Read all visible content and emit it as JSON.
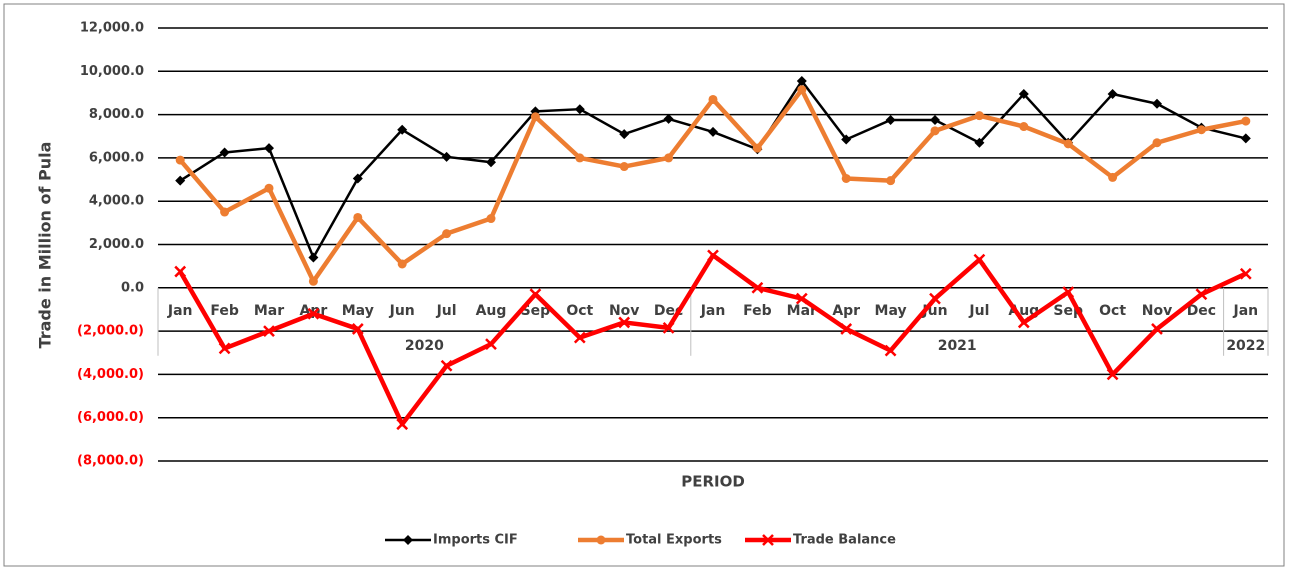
{
  "chart_data": {
    "type": "line",
    "x_title": "PERIOD",
    "y_title": "Trade in Million of  Pula",
    "categories": [
      "Jan",
      "Feb",
      "Mar",
      "Apr",
      "May",
      "Jun",
      "Jul",
      "Aug",
      "Sep",
      "Oct",
      "Nov",
      "Dec",
      "Jan",
      "Feb",
      "Mar",
      "Apr",
      "May",
      "Jun",
      "Jul",
      "Aug",
      "Sep",
      "Oct",
      "Nov",
      "Dec",
      "Jan"
    ],
    "category_years": [
      "2020",
      "2020",
      "2020",
      "2020",
      "2020",
      "2020",
      "2020",
      "2020",
      "2020",
      "2020",
      "2020",
      "2020",
      "2021",
      "2021",
      "2021",
      "2021",
      "2021",
      "2021",
      "2021",
      "2021",
      "2021",
      "2021",
      "2021",
      "2021",
      "2022"
    ],
    "series": [
      {
        "name": "Imports CIF",
        "color": "#000000",
        "marker": "diamond",
        "values": [
          4950,
          6250,
          6450,
          1400,
          5050,
          7300,
          6050,
          5800,
          8150,
          8250,
          7100,
          7800,
          7200,
          6400,
          9550,
          6850,
          7750,
          7750,
          6700,
          8950,
          6700,
          8950,
          8500,
          7400,
          6900
        ]
      },
      {
        "name": "Total Exports",
        "color": "#ed7d31",
        "marker": "circle",
        "values": [
          5900,
          3500,
          4600,
          300,
          3250,
          1100,
          2500,
          3200,
          7900,
          6000,
          5600,
          6000,
          8700,
          6450,
          9150,
          5050,
          4950,
          7250,
          7950,
          7450,
          6650,
          5100,
          6700,
          7300,
          7700
        ]
      },
      {
        "name": "Trade Balance",
        "color": "#ff0000",
        "marker": "x",
        "values": [
          750,
          -2800,
          -2000,
          -1200,
          -1900,
          -6300,
          -3600,
          -2600,
          -300,
          -2300,
          -1600,
          -1850,
          1500,
          0,
          -500,
          -1900,
          -2900,
          -500,
          1300,
          -1600,
          -200,
          -4000,
          -1900,
          -300,
          650
        ]
      }
    ],
    "ylim": [
      -8000,
      12000
    ],
    "yticks": [
      {
        "value": -8000,
        "label": "(8,000.0)"
      },
      {
        "value": -6000,
        "label": "(6,000.0)"
      },
      {
        "value": -4000,
        "label": "(4,000.0)"
      },
      {
        "value": -2000,
        "label": "(2,000.0)"
      },
      {
        "value": 0,
        "label": "0.0"
      },
      {
        "value": 2000,
        "label": "2,000.0"
      },
      {
        "value": 4000,
        "label": "4,000.0"
      },
      {
        "value": 6000,
        "label": "6,000.0"
      },
      {
        "value": 8000,
        "label": "8,000.0"
      },
      {
        "value": 10000,
        "label": "10,000.0"
      },
      {
        "value": 12000,
        "label": "12,000.0"
      }
    ],
    "negative_tick_color": "#ff0000",
    "grid": true,
    "legend": "bottom"
  }
}
